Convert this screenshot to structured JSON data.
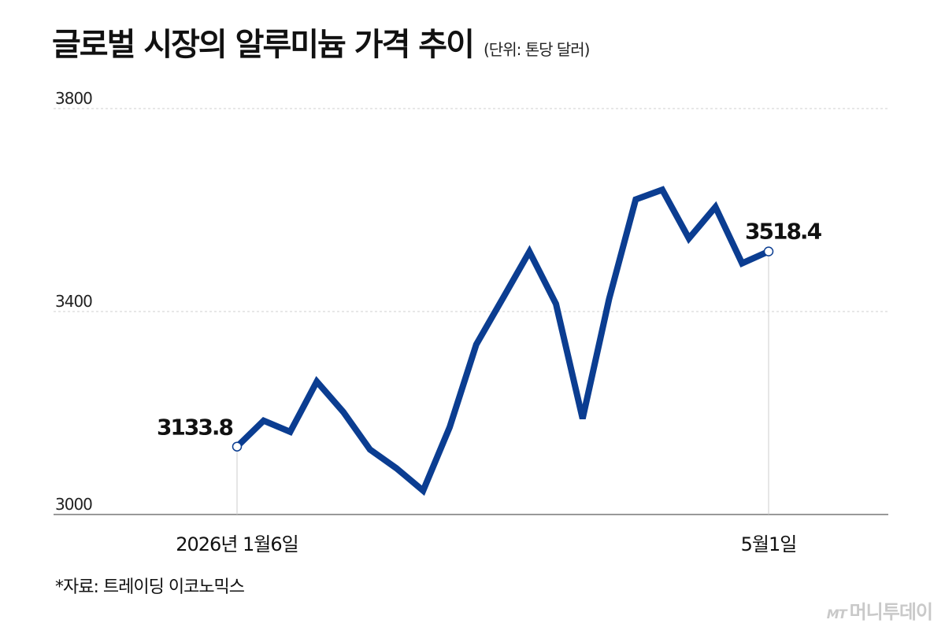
{
  "header": {
    "title": "글로벌 시장의 알루미늄 가격 추이",
    "unit": "(단위: 톤당 달러)"
  },
  "chart_data": {
    "type": "line",
    "title": "글로벌 시장의 알루미늄 가격 추이",
    "unit_label": "(단위: 톤당 달러)",
    "ylim": [
      3000,
      3800
    ],
    "y_ticks": [
      "3000",
      "3400",
      "3800"
    ],
    "grid": true,
    "x_labels": [
      {
        "index": 0,
        "text": "2026년 1월6일"
      },
      {
        "index": 20,
        "text": "5월1일"
      }
    ],
    "values": [
      3133.8,
      3185,
      3163,
      3262,
      3202,
      3128,
      3091,
      3047,
      3172,
      3335,
      3426,
      3518,
      3415,
      3189,
      3425,
      3621,
      3640,
      3544,
      3606,
      3495,
      3518.4
    ],
    "annotations": [
      {
        "index": 0,
        "text": "3133.8"
      },
      {
        "index": 20,
        "text": "3518.4"
      }
    ],
    "line_color": "#0b3d91"
  },
  "footer": {
    "source": "*자료: 트레이딩 이코노믹스",
    "logo_mt": "MT",
    "logo_text": "머니투데이"
  }
}
